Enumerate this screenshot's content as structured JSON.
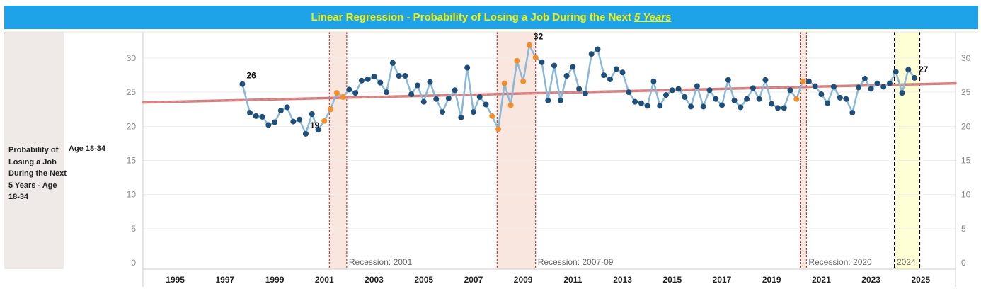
{
  "title": {
    "prefix": "Linear Regression - Probability of Losing a Job During the Next",
    "highlight": "5 Years"
  },
  "row_header": {
    "label": "Probability of Losing a Job During the Next 5 Years - Age 18-34",
    "sub_label": "Age 18-34"
  },
  "colors": {
    "title_bg": "#1fa3e8",
    "title_text": "#f6f000",
    "line": "#8ab8d8",
    "point": "#1f4e79",
    "point_recession": "#f28e2b",
    "trend": "#d97b7b",
    "recession_band": "#f9e6df",
    "recession_border": "#b22222",
    "highlight_band": "#ffffd6"
  },
  "chart_data": {
    "type": "line",
    "title": "Linear Regression - Probability of Losing a Job During the Next 5 Years",
    "ylabel": "Probability of Losing a Job During the Next 5 Years - Age 18-34",
    "ylim": [
      0,
      33
    ],
    "yticks": [
      0,
      5,
      10,
      15,
      20,
      25,
      30
    ],
    "xlim": [
      1993.7,
      2026.4
    ],
    "xticks": [
      1995,
      1997,
      1999,
      2001,
      2003,
      2005,
      2007,
      2009,
      2011,
      2013,
      2015,
      2017,
      2019,
      2021,
      2023,
      2025
    ],
    "series": [
      {
        "name": "Age 18-34",
        "points": [
          [
            1997.7,
            26.2
          ],
          [
            1998.0,
            22.0
          ],
          [
            1998.25,
            21.5
          ],
          [
            1998.5,
            21.4
          ],
          [
            1998.75,
            20.2
          ],
          [
            1999.0,
            20.6
          ],
          [
            1999.25,
            22.3
          ],
          [
            1999.5,
            22.8
          ],
          [
            1999.75,
            20.7
          ],
          [
            2000.0,
            21.0
          ],
          [
            2000.25,
            18.9
          ],
          [
            2000.5,
            21.8
          ],
          [
            2000.75,
            19.5
          ],
          [
            2001.0,
            20.8
          ],
          [
            2001.25,
            22.5
          ],
          [
            2001.5,
            24.9
          ],
          [
            2001.75,
            24.3
          ],
          [
            2002.0,
            25.4
          ],
          [
            2002.25,
            24.9
          ],
          [
            2002.5,
            26.7
          ],
          [
            2002.75,
            26.9
          ],
          [
            2003.0,
            27.3
          ],
          [
            2003.25,
            26.4
          ],
          [
            2003.5,
            25.0
          ],
          [
            2003.75,
            29.3
          ],
          [
            2004.0,
            27.4
          ],
          [
            2004.25,
            27.4
          ],
          [
            2004.5,
            24.7
          ],
          [
            2004.75,
            26.0
          ],
          [
            2005.0,
            23.6
          ],
          [
            2005.25,
            26.5
          ],
          [
            2005.5,
            24.0
          ],
          [
            2005.75,
            22.1
          ],
          [
            2006.0,
            24.1
          ],
          [
            2006.25,
            25.3
          ],
          [
            2006.5,
            21.3
          ],
          [
            2006.75,
            28.6
          ],
          [
            2007.0,
            22.1
          ],
          [
            2007.25,
            24.3
          ],
          [
            2007.5,
            23.2
          ],
          [
            2007.75,
            21.5
          ],
          [
            2008.0,
            19.6
          ],
          [
            2008.25,
            26.3
          ],
          [
            2008.5,
            23.1
          ],
          [
            2008.75,
            29.6
          ],
          [
            2009.0,
            26.6
          ],
          [
            2009.25,
            31.9
          ],
          [
            2009.5,
            30.1
          ],
          [
            2009.75,
            29.4
          ],
          [
            2010.0,
            23.8
          ],
          [
            2010.25,
            28.9
          ],
          [
            2010.5,
            23.8
          ],
          [
            2010.75,
            27.4
          ],
          [
            2011.0,
            28.7
          ],
          [
            2011.25,
            25.5
          ],
          [
            2011.5,
            24.8
          ],
          [
            2011.75,
            30.6
          ],
          [
            2012.0,
            31.3
          ],
          [
            2012.25,
            27.5
          ],
          [
            2012.5,
            26.9
          ],
          [
            2012.75,
            28.4
          ],
          [
            2013.0,
            27.9
          ],
          [
            2013.25,
            25.0
          ],
          [
            2013.5,
            23.6
          ],
          [
            2013.75,
            23.4
          ],
          [
            2014.0,
            23.0
          ],
          [
            2014.25,
            26.6
          ],
          [
            2014.5,
            23.0
          ],
          [
            2014.75,
            24.6
          ],
          [
            2015.0,
            25.3
          ],
          [
            2015.25,
            25.5
          ],
          [
            2015.5,
            24.3
          ],
          [
            2015.75,
            22.9
          ],
          [
            2016.0,
            25.9
          ],
          [
            2016.25,
            22.9
          ],
          [
            2016.5,
            25.3
          ],
          [
            2016.75,
            24.0
          ],
          [
            2017.0,
            23.1
          ],
          [
            2017.25,
            26.8
          ],
          [
            2017.5,
            23.8
          ],
          [
            2017.75,
            22.8
          ],
          [
            2018.0,
            24.0
          ],
          [
            2018.25,
            25.6
          ],
          [
            2018.5,
            24.0
          ],
          [
            2018.75,
            26.8
          ],
          [
            2019.0,
            23.3
          ],
          [
            2019.25,
            22.7
          ],
          [
            2019.5,
            22.7
          ],
          [
            2019.75,
            25.3
          ],
          [
            2020.0,
            24.0
          ],
          [
            2020.25,
            26.6
          ],
          [
            2020.5,
            26.6
          ],
          [
            2020.75,
            25.9
          ],
          [
            2021.0,
            24.7
          ],
          [
            2021.25,
            23.4
          ],
          [
            2021.5,
            25.8
          ],
          [
            2021.75,
            24.2
          ],
          [
            2022.0,
            24.0
          ],
          [
            2022.25,
            22.0
          ],
          [
            2022.5,
            25.7
          ],
          [
            2022.75,
            27.0
          ],
          [
            2023.0,
            25.5
          ],
          [
            2023.25,
            26.3
          ],
          [
            2023.5,
            25.8
          ],
          [
            2023.75,
            26.3
          ],
          [
            2024.0,
            28.0
          ],
          [
            2024.25,
            24.9
          ],
          [
            2024.5,
            28.3
          ],
          [
            2024.75,
            27.1
          ]
        ]
      }
    ],
    "trend_line": {
      "x": [
        1993.7,
        2026.4
      ],
      "y": [
        23.5,
        26.3
      ]
    },
    "recessions": [
      {
        "label": "Recession: 2001",
        "start": 2001.2,
        "end": 2001.9
      },
      {
        "label": "Recession: 2007-09",
        "start": 2007.95,
        "end": 2009.5
      },
      {
        "label": "Recession: 2020",
        "start": 2020.15,
        "end": 2020.4
      }
    ],
    "highlight": {
      "label": "2024",
      "start": 2023.95,
      "end": 2024.95
    },
    "data_labels": [
      {
        "text": "26",
        "x": 1997.7,
        "y": 26.2
      },
      {
        "text": "19",
        "x": 2000.25,
        "y": 18.9
      },
      {
        "text": "32",
        "x": 2009.25,
        "y": 31.9
      },
      {
        "text": "27",
        "x": 2024.75,
        "y": 27.1
      }
    ],
    "legend": "none",
    "grid": true
  }
}
